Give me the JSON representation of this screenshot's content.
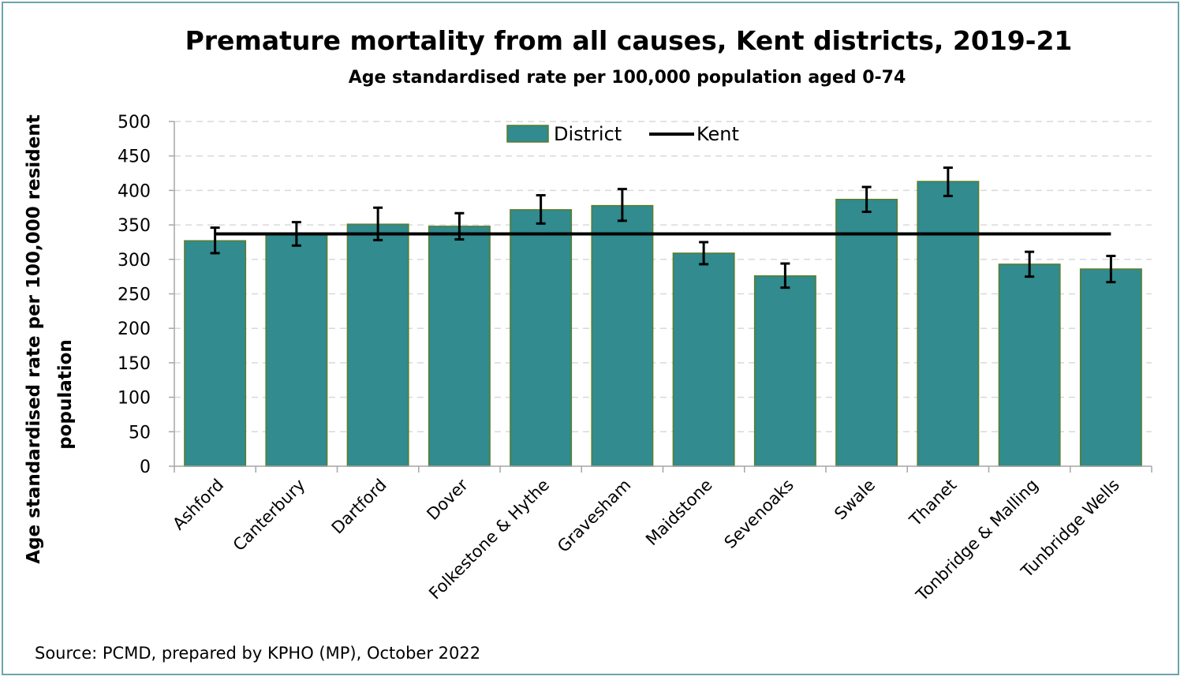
{
  "chart_data": {
    "type": "bar",
    "title": "Premature mortality from all causes, Kent districts, 2019-21",
    "subtitle": "Age standardised rate per 100,000 population  aged 0-74",
    "ylabel_lines": [
      "Age standardised rate per 100,000 resident",
      "population"
    ],
    "xlabel": "",
    "ylim": [
      0,
      500
    ],
    "yticks": [
      0,
      50,
      100,
      150,
      200,
      250,
      300,
      350,
      400,
      450,
      500
    ],
    "grid": true,
    "legend_position": "top-center",
    "categories": [
      "Ashford",
      "Canterbury",
      "Dartford",
      "Dover",
      "Folkestone & Hythe",
      "Gravesham",
      "Maidstone",
      "Sevenoaks",
      "Swale",
      "Thanet",
      "Tonbridge & Malling",
      "Tunbridge Wells"
    ],
    "series": [
      {
        "name": "District",
        "kind": "bar",
        "color": "#318b8f",
        "values": [
          327,
          337,
          351,
          348,
          372,
          378,
          309,
          276,
          387,
          413,
          293,
          286
        ],
        "ci_lower": [
          309,
          320,
          328,
          329,
          352,
          356,
          293,
          259,
          369,
          392,
          275,
          267
        ],
        "ci_upper": [
          346,
          354,
          375,
          367,
          393,
          402,
          325,
          294,
          405,
          433,
          311,
          305
        ]
      },
      {
        "name": "Kent",
        "kind": "line",
        "color": "#000000",
        "value": 337
      }
    ]
  },
  "source": "Source: PCMD, prepared by KPHO (MP), October 2022",
  "colors": {
    "bar_fill": "#318b8f",
    "bar_stroke": "#5a7d2a",
    "kent_line": "#000000",
    "gridline": "#d9d9d9",
    "axis": "#a6a6a6",
    "frame_border": "#6aa5ad"
  }
}
